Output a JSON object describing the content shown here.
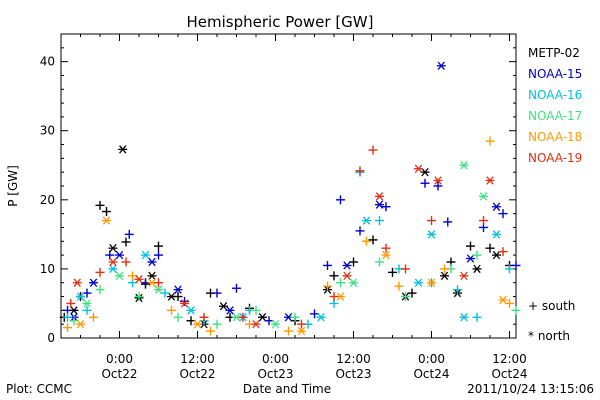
{
  "chart_data": {
    "type": "scatter",
    "title": "Hemispheric Power [GW]",
    "ylabel": "P [GW]",
    "xlabel": "Date and Time",
    "ylim": [
      0,
      44
    ],
    "yticks": [
      0,
      10,
      20,
      30,
      40
    ],
    "xlim": [
      "2011-10-21T15:00",
      "2011-10-24T13:00"
    ],
    "xticks": [
      {
        "at": "2011-10-22T00:00",
        "time": "0:00",
        "date": "Oct22"
      },
      {
        "at": "2011-10-22T12:00",
        "time": "12:00",
        "date": "Oct22"
      },
      {
        "at": "2011-10-23T00:00",
        "time": "0:00",
        "date": "Oct23"
      },
      {
        "at": "2011-10-23T12:00",
        "time": "12:00",
        "date": "Oct23"
      },
      {
        "at": "2011-10-24T00:00",
        "time": "0:00",
        "date": "Oct24"
      },
      {
        "at": "2011-10-24T12:00",
        "time": "12:00",
        "date": "Oct24"
      }
    ],
    "grid": false,
    "legend_position": "right",
    "series": [
      {
        "name": "METP-02",
        "color": "#000000",
        "south": [
          [
            "2011-10-21T15:30",
            3
          ],
          [
            "2011-10-21T18:00",
            6
          ],
          [
            "2011-10-21T21:00",
            19.2
          ],
          [
            "2011-10-21T22:00",
            18.3
          ],
          [
            "2011-10-22T01:00",
            13.9
          ],
          [
            "2011-10-22T04:00",
            7.8
          ],
          [
            "2011-10-22T06:00",
            13.3
          ],
          [
            "2011-10-22T09:00",
            6
          ],
          [
            "2011-10-22T11:00",
            2.5
          ],
          [
            "2011-10-22T14:00",
            6.5
          ],
          [
            "2011-10-22T17:00",
            3
          ],
          [
            "2011-10-22T20:00",
            4.3
          ],
          [
            "2011-10-23T03:00",
            2.5
          ],
          [
            "2011-10-23T09:00",
            9
          ],
          [
            "2011-10-23T12:00",
            11
          ],
          [
            "2011-10-23T15:00",
            14.2
          ],
          [
            "2011-10-23T18:00",
            9.5
          ],
          [
            "2011-10-23T21:00",
            6.5
          ],
          [
            "2011-10-24T03:00",
            11
          ],
          [
            "2011-10-24T06:00",
            13.3
          ],
          [
            "2011-10-24T09:00",
            13
          ],
          [
            "2011-10-24T12:00",
            10.5
          ]
        ],
        "north": [
          [
            "2011-10-21T17:00",
            4
          ],
          [
            "2011-10-21T23:00",
            13
          ],
          [
            "2011-10-22T00:30",
            27.3
          ],
          [
            "2011-10-22T03:00",
            5.8
          ],
          [
            "2011-10-22T05:00",
            9
          ],
          [
            "2011-10-22T08:00",
            6
          ],
          [
            "2011-10-22T13:00",
            2
          ],
          [
            "2011-10-22T16:00",
            4.6
          ],
          [
            "2011-10-22T22:00",
            3
          ],
          [
            "2011-10-23T08:00",
            7
          ],
          [
            "2011-10-23T20:00",
            6
          ],
          [
            "2011-10-23T23:00",
            24
          ],
          [
            "2011-10-24T02:00",
            9
          ],
          [
            "2011-10-24T04:00",
            6.5
          ],
          [
            "2011-10-24T07:00",
            10
          ],
          [
            "2011-10-24T10:00",
            12
          ]
        ]
      },
      {
        "name": "NOAA-15",
        "color": "#0000cc",
        "south": [
          [
            "2011-10-21T16:00",
            4
          ],
          [
            "2011-10-21T19:00",
            6.5
          ],
          [
            "2011-10-21T22:30",
            12
          ],
          [
            "2011-10-22T01:30",
            15
          ],
          [
            "2011-10-22T04:00",
            8
          ],
          [
            "2011-10-22T06:00",
            12
          ],
          [
            "2011-10-22T10:00",
            5.3
          ],
          [
            "2011-10-22T15:00",
            6.5
          ],
          [
            "2011-10-22T18:00",
            7.2
          ],
          [
            "2011-10-22T23:00",
            2.5
          ],
          [
            "2011-10-23T06:00",
            3.5
          ],
          [
            "2011-10-23T08:00",
            10.5
          ],
          [
            "2011-10-23T10:00",
            20
          ],
          [
            "2011-10-23T13:00",
            15.5
          ],
          [
            "2011-10-23T17:00",
            19
          ],
          [
            "2011-10-23T23:00",
            22.4
          ],
          [
            "2011-10-24T01:00",
            22
          ],
          [
            "2011-10-24T02:30",
            16.8
          ],
          [
            "2011-10-24T08:00",
            16
          ],
          [
            "2011-10-24T11:00",
            18
          ],
          [
            "2011-10-24T13:00",
            10.5
          ]
        ],
        "north": [
          [
            "2011-10-21T17:00",
            3
          ],
          [
            "2011-10-21T20:00",
            8
          ],
          [
            "2011-10-22T00:00",
            12
          ],
          [
            "2011-10-22T05:00",
            11
          ],
          [
            "2011-10-22T09:00",
            7
          ],
          [
            "2011-10-22T17:00",
            4
          ],
          [
            "2011-10-23T02:00",
            3
          ],
          [
            "2011-10-23T11:00",
            10.5
          ],
          [
            "2011-10-23T16:00",
            19.3
          ],
          [
            "2011-10-24T01:30",
            39.4
          ],
          [
            "2011-10-24T06:00",
            11.5
          ],
          [
            "2011-10-24T10:00",
            19
          ]
        ]
      },
      {
        "name": "NOAA-16",
        "color": "#00c0e0",
        "south": [
          [
            "2011-10-21T16:00",
            3
          ],
          [
            "2011-10-21T19:00",
            4
          ],
          [
            "2011-10-22T02:00",
            8
          ],
          [
            "2011-10-22T07:00",
            6.5
          ],
          [
            "2011-10-22T13:00",
            2.5
          ],
          [
            "2011-10-22T20:00",
            4
          ],
          [
            "2011-10-23T05:00",
            2
          ],
          [
            "2011-10-23T09:00",
            5
          ],
          [
            "2011-10-23T13:00",
            24
          ],
          [
            "2011-10-23T16:00",
            17
          ],
          [
            "2011-10-23T19:00",
            10
          ],
          [
            "2011-10-24T00:00",
            8
          ],
          [
            "2011-10-24T04:00",
            7
          ],
          [
            "2011-10-24T07:00",
            3
          ],
          [
            "2011-10-24T12:00",
            10
          ]
        ],
        "north": [
          [
            "2011-10-21T18:00",
            6
          ],
          [
            "2011-10-21T23:00",
            10
          ],
          [
            "2011-10-22T04:00",
            12
          ],
          [
            "2011-10-22T11:00",
            4
          ],
          [
            "2011-10-22T19:00",
            3
          ],
          [
            "2011-10-23T07:00",
            3
          ],
          [
            "2011-10-23T14:00",
            17
          ],
          [
            "2011-10-23T22:00",
            8
          ],
          [
            "2011-10-24T00:00",
            15
          ],
          [
            "2011-10-24T05:00",
            3
          ],
          [
            "2011-10-24T10:00",
            15
          ]
        ]
      },
      {
        "name": "NOAA-17",
        "color": "#40e080",
        "south": [
          [
            "2011-10-21T17:00",
            2.5
          ],
          [
            "2011-10-21T21:00",
            7
          ],
          [
            "2011-10-22T03:00",
            6
          ],
          [
            "2011-10-22T09:00",
            3
          ],
          [
            "2011-10-22T15:00",
            2
          ],
          [
            "2011-10-22T21:00",
            4
          ],
          [
            "2011-10-23T03:00",
            3
          ],
          [
            "2011-10-23T10:00",
            8
          ],
          [
            "2011-10-23T16:00",
            11
          ],
          [
            "2011-10-23T20:00",
            6
          ],
          [
            "2011-10-24T03:00",
            10
          ],
          [
            "2011-10-24T07:00",
            12
          ],
          [
            "2011-10-24T13:00",
            4
          ]
        ],
        "north": [
          [
            "2011-10-21T19:00",
            5
          ],
          [
            "2011-10-22T00:00",
            9
          ],
          [
            "2011-10-22T06:00",
            7
          ],
          [
            "2011-10-22T18:00",
            3
          ],
          [
            "2011-10-23T00:00",
            2
          ],
          [
            "2011-10-23T12:00",
            8
          ],
          [
            "2011-10-24T05:00",
            25
          ],
          [
            "2011-10-24T08:00",
            20.5
          ]
        ]
      },
      {
        "name": "NOAA-18",
        "color": "#ff9900",
        "south": [
          [
            "2011-10-21T16:00",
            1.5
          ],
          [
            "2011-10-21T20:00",
            3
          ],
          [
            "2011-10-22T02:00",
            9
          ],
          [
            "2011-10-22T08:00",
            4
          ],
          [
            "2011-10-22T14:00",
            1
          ],
          [
            "2011-10-22T20:00",
            2
          ],
          [
            "2011-10-23T02:00",
            1
          ],
          [
            "2011-10-23T08:00",
            7.5
          ],
          [
            "2011-10-23T14:00",
            14
          ],
          [
            "2011-10-23T19:00",
            7.5
          ],
          [
            "2011-10-24T02:00",
            10
          ],
          [
            "2011-10-24T09:00",
            28.5
          ],
          [
            "2011-10-24T12:00",
            5
          ]
        ],
        "north": [
          [
            "2011-10-21T18:00",
            2
          ],
          [
            "2011-10-21T22:00",
            17
          ],
          [
            "2011-10-22T05:00",
            8
          ],
          [
            "2011-10-22T12:00",
            2
          ],
          [
            "2011-10-23T04:00",
            1
          ],
          [
            "2011-10-23T10:00",
            6
          ],
          [
            "2011-10-23T17:00",
            12
          ],
          [
            "2011-10-24T00:00",
            8
          ],
          [
            "2011-10-24T11:00",
            5.5
          ]
        ]
      },
      {
        "name": "NOAA-19",
        "color": "#e03010",
        "south": [
          [
            "2011-10-21T16:30",
            5
          ],
          [
            "2011-10-21T21:00",
            9.5
          ],
          [
            "2011-10-22T01:00",
            11
          ],
          [
            "2011-10-22T06:00",
            8
          ],
          [
            "2011-10-22T13:00",
            3
          ],
          [
            "2011-10-22T19:00",
            3
          ],
          [
            "2011-10-23T04:00",
            2
          ],
          [
            "2011-10-23T09:00",
            6
          ],
          [
            "2011-10-23T13:00",
            24.2
          ],
          [
            "2011-10-23T15:00",
            27.2
          ],
          [
            "2011-10-23T17:00",
            13
          ],
          [
            "2011-10-23T20:00",
            10
          ],
          [
            "2011-10-24T00:00",
            17
          ],
          [
            "2011-10-24T08:00",
            17
          ],
          [
            "2011-10-24T11:00",
            12.5
          ]
        ],
        "north": [
          [
            "2011-10-21T17:30",
            8
          ],
          [
            "2011-10-21T23:00",
            11
          ],
          [
            "2011-10-22T03:00",
            8.5
          ],
          [
            "2011-10-22T10:00",
            5
          ],
          [
            "2011-10-22T21:00",
            2
          ],
          [
            "2011-10-23T11:00",
            9
          ],
          [
            "2011-10-23T16:00",
            20.5
          ],
          [
            "2011-10-23T22:00",
            24.5
          ],
          [
            "2011-10-24T01:00",
            22.8
          ],
          [
            "2011-10-24T05:00",
            9
          ],
          [
            "2011-10-24T09:00",
            22.8
          ]
        ]
      }
    ],
    "marker_legend": [
      {
        "symbol": "+",
        "label": "south"
      },
      {
        "symbol": "*",
        "label": "north"
      }
    ],
    "footer": {
      "left": "Plot: CCMC",
      "right": "2011/10/24 13:15:06"
    }
  }
}
